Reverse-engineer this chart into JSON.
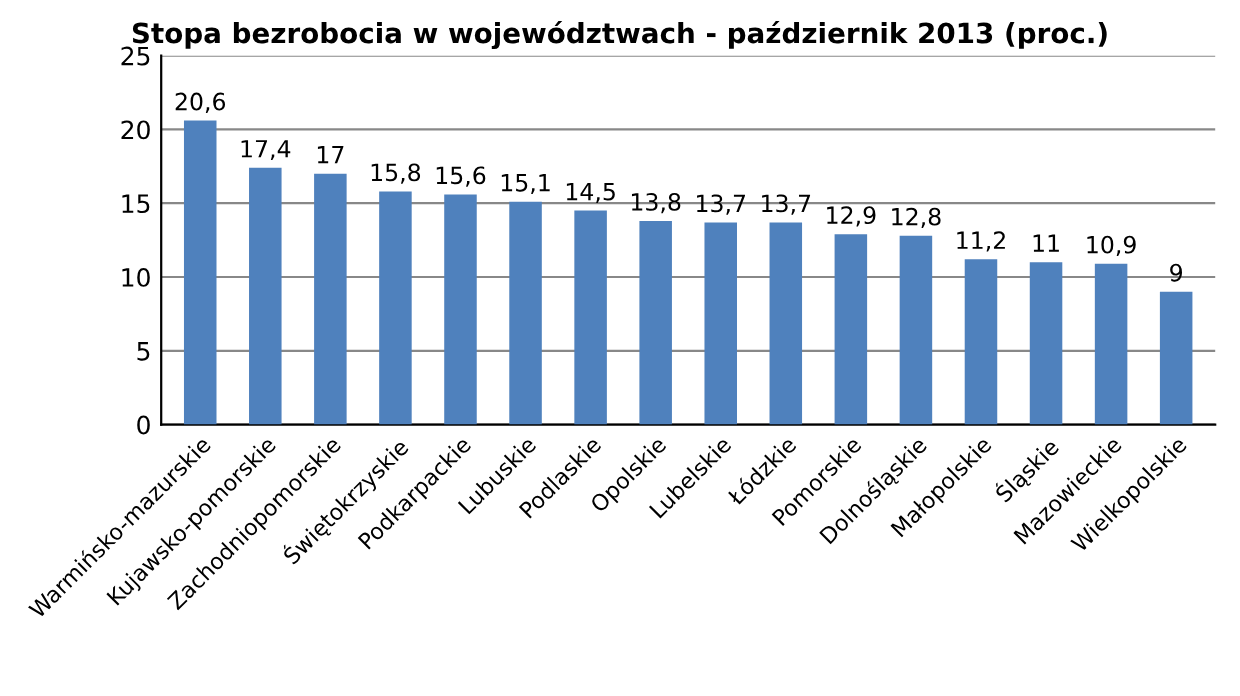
{
  "chart_data": {
    "type": "bar",
    "title": "Stopa bezrobocia w województwach - październik 2013 (proc.)",
    "categories": [
      "Warmińsko-mazurskie",
      "Kujawsko-pomorskie",
      "Zachodniopomorskie",
      "Świętokrzyskie",
      "Podkarpackie",
      "Lubuskie",
      "Podlaskie",
      "Opolskie",
      "Lubelskie",
      "Łódzkie",
      "Pomorskie",
      "Dolnośląskie",
      "Małopolskie",
      "Śląskie",
      "Mazowieckie",
      "Wielkopolskie"
    ],
    "values": [
      20.6,
      17.4,
      17,
      15.8,
      15.6,
      15.1,
      14.5,
      13.8,
      13.7,
      13.7,
      12.9,
      12.8,
      11.2,
      11,
      10.9,
      9
    ],
    "value_labels": [
      "20,6",
      "17,4",
      "17",
      "15,8",
      "15,6",
      "15,1",
      "14,5",
      "13,8",
      "13,7",
      "13,7",
      "12,9",
      "12,8",
      "11,2",
      "11",
      "10,9",
      "9"
    ],
    "color": "#4f81bd",
    "ylim": [
      0,
      25
    ],
    "yticks": [
      0,
      5,
      10,
      15,
      20,
      25
    ],
    "grid": "y",
    "legend": false
  }
}
